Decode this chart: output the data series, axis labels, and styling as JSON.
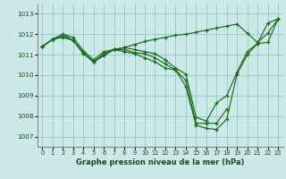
{
  "xlabel": "Graphe pression niveau de la mer (hPa)",
  "bg_color": "#cce8e8",
  "grid_color": "#99cccc",
  "line_color": "#1a6b1a",
  "ylim": [
    1006.5,
    1013.5
  ],
  "yticks": [
    1007,
    1008,
    1009,
    1010,
    1011,
    1012,
    1013
  ],
  "xlim": [
    -0.5,
    23.5
  ],
  "xticks": [
    0,
    1,
    2,
    3,
    4,
    5,
    6,
    7,
    8,
    9,
    10,
    11,
    12,
    13,
    14,
    15,
    16,
    17,
    18,
    19,
    20,
    21,
    22,
    23
  ],
  "series": [
    [
      1011.4,
      1011.75,
      1012.0,
      1011.7,
      1011.1,
      1010.65,
      1011.05,
      1011.25,
      1011.15,
      1011.05,
      1010.85,
      1010.65,
      1010.35,
      1010.25,
      1009.45,
      1007.55,
      1007.4,
      1007.35,
      1007.85,
      1010.05,
      1011.0,
      1011.55,
      1012.55,
      1012.75
    ],
    [
      1011.4,
      1011.75,
      1012.0,
      1011.85,
      1011.2,
      1010.75,
      1011.15,
      1011.25,
      1011.35,
      1011.5,
      1011.65,
      1011.75,
      1011.85,
      1011.95,
      1012.0,
      1012.1,
      1012.2,
      1012.3,
      1012.4,
      1012.5,
      1012.05,
      1011.6,
      1012.05,
      1012.75
    ],
    [
      1011.4,
      1011.75,
      1011.85,
      1011.7,
      1011.1,
      1010.65,
      1011.0,
      1011.25,
      1011.35,
      1011.25,
      1011.15,
      1011.05,
      1010.75,
      1010.35,
      1010.05,
      1007.95,
      1007.75,
      1008.65,
      1009.0,
      1010.15,
      1011.15,
      1011.55,
      1011.6,
      1012.75
    ],
    [
      1011.4,
      1011.75,
      1011.9,
      1011.7,
      1011.05,
      1010.65,
      1010.95,
      1011.25,
      1011.25,
      1011.1,
      1011.05,
      1010.85,
      1010.55,
      1010.25,
      1009.75,
      1007.65,
      1007.65,
      1007.65,
      1008.35,
      null,
      null,
      null,
      null,
      null
    ]
  ]
}
